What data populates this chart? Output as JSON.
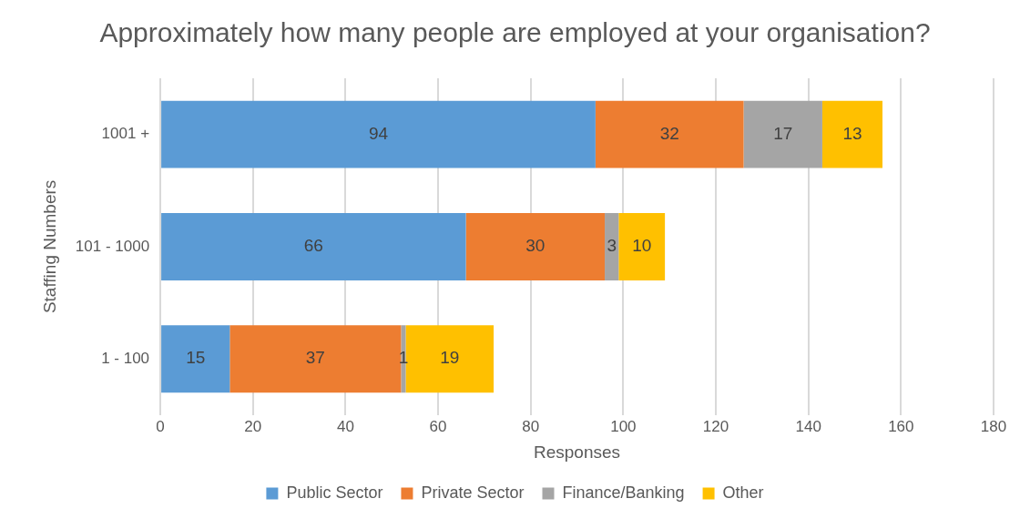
{
  "chart_data": {
    "type": "bar",
    "orientation": "horizontal",
    "stacked": true,
    "title": "Approximately how many people are employed at your organisation?",
    "xlabel": "Responses",
    "ylabel": "Staffing Numbers",
    "categories": [
      "1001 +",
      "101 - 1000",
      "1 - 100"
    ],
    "series": [
      {
        "name": "Public Sector",
        "color": "#5b9bd5",
        "values": [
          94,
          66,
          15
        ]
      },
      {
        "name": "Private Sector",
        "color": "#ed7d31",
        "values": [
          32,
          30,
          37
        ]
      },
      {
        "name": "Finance/Banking",
        "color": "#a5a5a5",
        "values": [
          17,
          3,
          1
        ]
      },
      {
        "name": "Other",
        "color": "#ffc000",
        "values": [
          13,
          10,
          19
        ]
      }
    ],
    "xlim": [
      0,
      180
    ],
    "xticks": [
      0,
      20,
      40,
      60,
      80,
      100,
      120,
      140,
      160,
      180
    ],
    "grid": "x",
    "legend": "bottom",
    "data_labels": true
  }
}
